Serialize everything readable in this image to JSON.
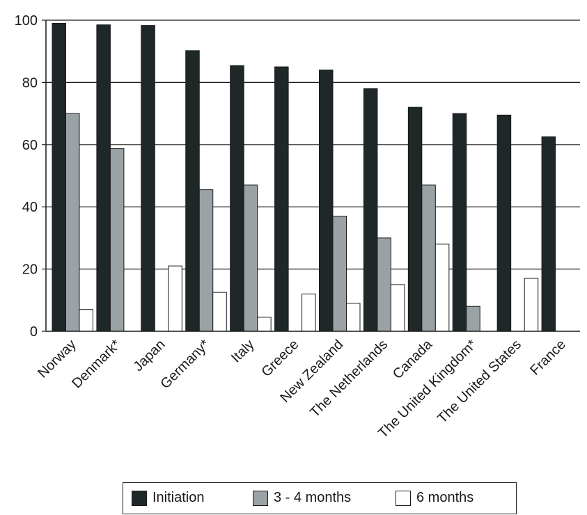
{
  "chart_data": {
    "type": "bar",
    "title": "",
    "xlabel": "",
    "ylabel": "",
    "ylim": [
      0,
      100
    ],
    "yticks": [
      "0",
      "20",
      "40",
      "60",
      "80",
      "100"
    ],
    "grid": "horizontal",
    "legend_position": "bottom",
    "categories": [
      "Norway",
      "Denmark*",
      "Japan",
      "Germany*",
      "Italy",
      "Greece",
      "New Zealand",
      "The Netherlands",
      "Canada",
      "The United Kingdom*",
      "The United States",
      "France"
    ],
    "series": [
      {
        "name": "Initiation",
        "color": "#1e2828",
        "values": [
          99,
          98.5,
          98.3,
          90.2,
          85.4,
          85,
          84,
          78,
          72,
          70,
          69.5,
          62.5
        ]
      },
      {
        "name": "3 - 4 months",
        "color": "#9aa2a5",
        "values": [
          70,
          58.7,
          null,
          45.5,
          47,
          null,
          37,
          30,
          47,
          8,
          null,
          null
        ]
      },
      {
        "name": "6 months",
        "color": "#ffffff",
        "values": [
          7,
          null,
          21,
          12.5,
          4.5,
          12,
          9,
          15,
          28,
          null,
          17,
          null
        ]
      }
    ]
  }
}
